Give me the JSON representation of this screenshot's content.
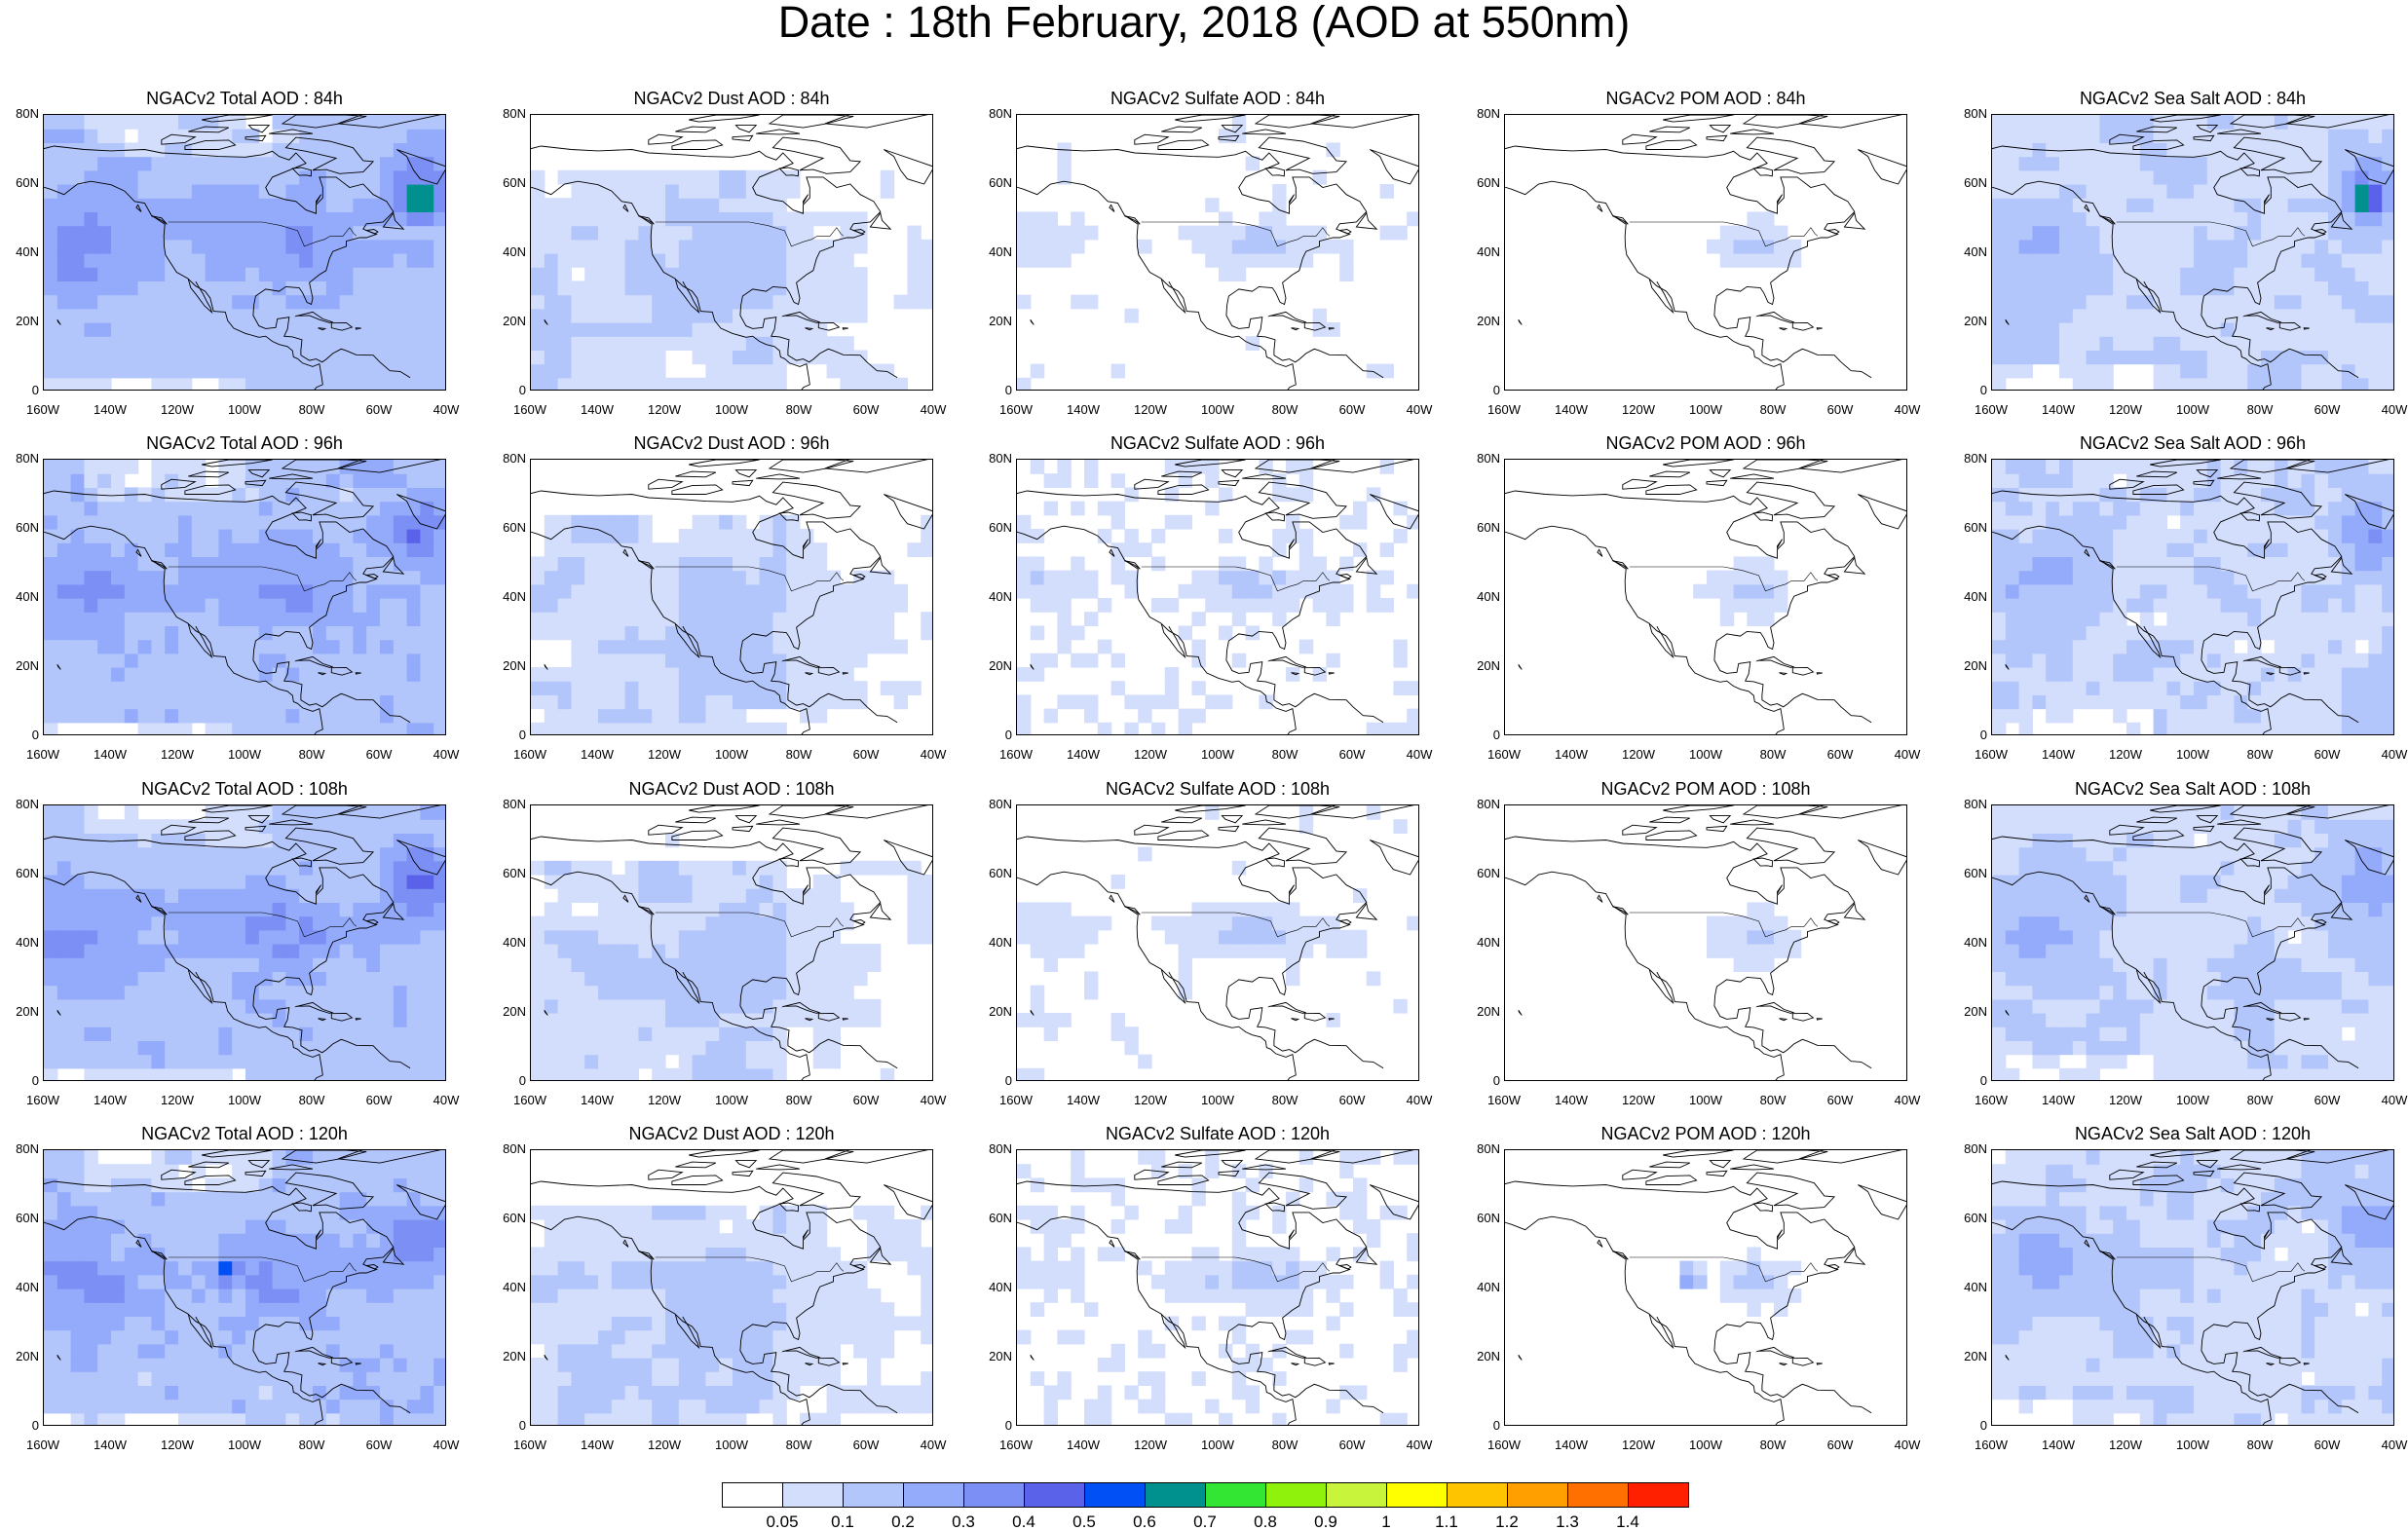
{
  "title": "Date : 18th February, 2018 (AOD at 550nm)",
  "axes": {
    "lon_ticks": [
      "160W",
      "140W",
      "120W",
      "100W",
      "80W",
      "60W",
      "40W"
    ],
    "lat_ticks": [
      "0",
      "20N",
      "40N",
      "60N",
      "80N"
    ],
    "lon_range_deg": [
      -160,
      -40
    ],
    "lat_range_deg": [
      0,
      80
    ]
  },
  "panels": [
    {
      "title": "NGACv2 Total AOD : 84h",
      "variable": "total",
      "hour": 84
    },
    {
      "title": "NGACv2 Dust AOD : 84h",
      "variable": "dust",
      "hour": 84
    },
    {
      "title": "NGACv2 Sulfate AOD : 84h",
      "variable": "sulfate",
      "hour": 84
    },
    {
      "title": "NGACv2 POM AOD : 84h",
      "variable": "pom",
      "hour": 84
    },
    {
      "title": "NGACv2 Sea Salt AOD : 84h",
      "variable": "seasalt",
      "hour": 84
    },
    {
      "title": "NGACv2 Total AOD : 96h",
      "variable": "total",
      "hour": 96
    },
    {
      "title": "NGACv2 Dust AOD : 96h",
      "variable": "dust",
      "hour": 96
    },
    {
      "title": "NGACv2 Sulfate AOD : 96h",
      "variable": "sulfate",
      "hour": 96
    },
    {
      "title": "NGACv2 POM AOD : 96h",
      "variable": "pom",
      "hour": 96
    },
    {
      "title": "NGACv2 Sea Salt AOD : 96h",
      "variable": "seasalt",
      "hour": 96
    },
    {
      "title": "NGACv2 Total AOD : 108h",
      "variable": "total",
      "hour": 108
    },
    {
      "title": "NGACv2 Dust AOD : 108h",
      "variable": "dust",
      "hour": 108
    },
    {
      "title": "NGACv2 Sulfate AOD : 108h",
      "variable": "sulfate",
      "hour": 108
    },
    {
      "title": "NGACv2 POM AOD : 108h",
      "variable": "pom",
      "hour": 108
    },
    {
      "title": "NGACv2 Sea Salt AOD : 108h",
      "variable": "seasalt",
      "hour": 108
    },
    {
      "title": "NGACv2 Total AOD : 120h",
      "variable": "total",
      "hour": 120
    },
    {
      "title": "NGACv2 Dust AOD : 120h",
      "variable": "dust",
      "hour": 120
    },
    {
      "title": "NGACv2 Sulfate AOD : 120h",
      "variable": "sulfate",
      "hour": 120
    },
    {
      "title": "NGACv2 POM AOD : 120h",
      "variable": "pom",
      "hour": 120
    },
    {
      "title": "NGACv2 Sea Salt  AOD : 120h",
      "variable": "seasalt",
      "hour": 120
    }
  ],
  "colorbar": {
    "labels": [
      "0.05",
      "0.1",
      "0.2",
      "0.3",
      "0.4",
      "0.5",
      "0.6",
      "0.7",
      "0.8",
      "0.9",
      "1",
      "1.1",
      "1.2",
      "1.3",
      "1.4"
    ],
    "colors": [
      "#ffffff",
      "#d3defc",
      "#b3c6fb",
      "#93abfa",
      "#7b8ff4",
      "#5b62ea",
      "#0050f6",
      "#00918f",
      "#33e633",
      "#8ff20c",
      "#c8f53c",
      "#ffff00",
      "#ffc400",
      "#ffa000",
      "#ff7000",
      "#ff2000"
    ]
  }
}
